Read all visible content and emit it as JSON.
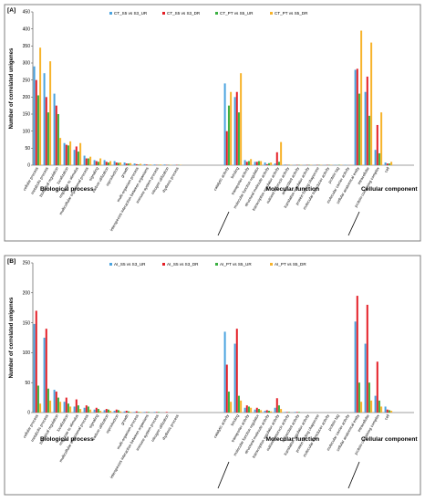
{
  "colors": {
    "s1": "#4aa3df",
    "s2": "#e41e26",
    "s3": "#3cb043",
    "s4": "#f7b32b"
  },
  "chart_data": [
    {
      "panel": "[A]",
      "type": "bar",
      "ylabel": "Number of correlated unigenes",
      "ylim": [
        0,
        450
      ],
      "yticks": [
        0,
        50,
        100,
        150,
        200,
        250,
        300,
        350,
        400,
        450
      ],
      "legend_position": "top",
      "groups": [
        {
          "label": "Biological process",
          "from": 0,
          "to": 18
        },
        {
          "label": "Molecular function",
          "from": 19,
          "to": 31
        },
        {
          "label": "Cellular component",
          "from": 32,
          "to": 37
        }
      ],
      "categories": [
        "cellular process",
        "metabolic process",
        "biological regulation",
        "localization",
        "response to stimulus",
        "multicellular organismal process",
        "signaling",
        "carbon utilization",
        "reproduction",
        "growth",
        "multi-organism process",
        "interspecies interaction between organisms",
        "immune system process",
        "nitrogen utilization",
        "rhythmic process",
        "",
        "",
        "",
        "",
        "catalytic activity",
        "binding",
        "transporter activity",
        "molecular function regulator",
        "structural molecule activity",
        "transcription regulator activity",
        "nutrient reservoir activity",
        "antioxidant activity",
        "translation regulator activity",
        "protein folding chaperone",
        "molecular transducer activity",
        "protein tag",
        "molecular carrier activity",
        "cellular anatomical entity",
        "intracellular",
        "protein-containing complex",
        "cell",
        "",
        ""
      ],
      "series": [
        {
          "name": "CT_S5 vs S3_UR",
          "values": [
            290,
            270,
            210,
            65,
            45,
            28,
            15,
            15,
            12,
            8,
            5,
            3,
            2,
            2,
            1,
            0,
            0,
            0,
            0,
            240,
            200,
            15,
            10,
            8,
            5,
            2,
            1,
            1,
            1,
            1,
            1,
            1,
            280,
            215,
            45,
            8,
            0,
            0
          ]
        },
        {
          "name": "CT_S5 vs S3_DR",
          "values": [
            250,
            200,
            175,
            60,
            55,
            20,
            12,
            10,
            8,
            5,
            3,
            2,
            1,
            1,
            1,
            0,
            0,
            0,
            0,
            100,
            215,
            10,
            10,
            3,
            38,
            1,
            1,
            1,
            1,
            1,
            0,
            0,
            283,
            260,
            118,
            5,
            0,
            0
          ]
        },
        {
          "name": "CT_PT vs S5_UR",
          "values": [
            205,
            155,
            150,
            58,
            40,
            20,
            10,
            8,
            7,
            5,
            2,
            1,
            1,
            1,
            1,
            0,
            0,
            0,
            0,
            175,
            155,
            12,
            12,
            6,
            10,
            1,
            1,
            1,
            1,
            1,
            1,
            0,
            210,
            145,
            35,
            5,
            0,
            0
          ]
        },
        {
          "name": "CT_PT vs S5_DR",
          "values": [
            345,
            305,
            80,
            70,
            65,
            25,
            20,
            12,
            8,
            6,
            4,
            2,
            2,
            1,
            1,
            0,
            0,
            0,
            0,
            215,
            270,
            18,
            12,
            8,
            68,
            1,
            1,
            1,
            1,
            1,
            1,
            1,
            395,
            360,
            155,
            10,
            0,
            0
          ]
        }
      ]
    },
    {
      "panel": "[B]",
      "type": "bar",
      "ylabel": "Number of correlated unigenes",
      "ylim": [
        0,
        250
      ],
      "yticks": [
        0,
        50,
        100,
        150,
        200,
        250
      ],
      "legend_position": "top",
      "groups": [
        {
          "label": "Biological process",
          "from": 0,
          "to": 18
        },
        {
          "label": "Molecular function",
          "from": 19,
          "to": 31
        },
        {
          "label": "Cellular component",
          "from": 32,
          "to": 37
        }
      ],
      "categories": [
        "cellular process",
        "metabolic process",
        "biological regulation",
        "localization",
        "response to stimulus",
        "multicellular organismal process",
        "signaling",
        "carbon utilization",
        "reproduction",
        "growth",
        "multi-organism process",
        "interspecies interaction between organisms",
        "immune system process",
        "nitrogen utilization",
        "rhythmic process",
        "",
        "",
        "",
        "",
        "catalytic activity",
        "binding",
        "transporter activity",
        "molecular function regulator",
        "structural molecule activity",
        "transcription regulator activity",
        "nutrient reservoir activity",
        "antioxidant activity",
        "translation regulator activity",
        "protein folding chaperone",
        "molecular transducer activity",
        "protein tag",
        "molecular carrier activity",
        "cellular anatomical entity",
        "intracellular",
        "protein-containing complex",
        "cell",
        "",
        ""
      ],
      "series": [
        {
          "name": "AI_S5 vs S3_UR",
          "values": [
            148,
            125,
            38,
            18,
            10,
            8,
            5,
            4,
            3,
            2,
            1,
            1,
            1,
            0,
            0,
            0,
            0,
            0,
            0,
            135,
            115,
            8,
            5,
            3,
            8,
            1,
            1,
            0,
            0,
            0,
            0,
            0,
            152,
            115,
            28,
            10,
            0,
            0
          ]
        },
        {
          "name": "AI_S5 vs S3_DR",
          "values": [
            170,
            140,
            35,
            25,
            22,
            12,
            8,
            6,
            5,
            3,
            2,
            1,
            1,
            1,
            0,
            0,
            0,
            0,
            0,
            80,
            140,
            12,
            8,
            4,
            24,
            1,
            1,
            0,
            0,
            0,
            0,
            0,
            195,
            180,
            85,
            5,
            0,
            0
          ]
        },
        {
          "name": "AI_PT vs S5_UR",
          "values": [
            45,
            40,
            25,
            15,
            12,
            10,
            6,
            5,
            4,
            2,
            1,
            1,
            1,
            0,
            0,
            0,
            0,
            0,
            0,
            35,
            28,
            10,
            6,
            3,
            12,
            1,
            1,
            0,
            0,
            0,
            0,
            0,
            50,
            50,
            20,
            4,
            0,
            0
          ]
        },
        {
          "name": "AI_PT vs S5_DR",
          "values": [
            15,
            20,
            18,
            10,
            6,
            5,
            3,
            3,
            2,
            1,
            1,
            0,
            0,
            0,
            0,
            0,
            0,
            0,
            0,
            18,
            20,
            8,
            4,
            2,
            6,
            0,
            0,
            0,
            0,
            0,
            0,
            0,
            18,
            20,
            10,
            3,
            0,
            0
          ]
        }
      ]
    }
  ]
}
